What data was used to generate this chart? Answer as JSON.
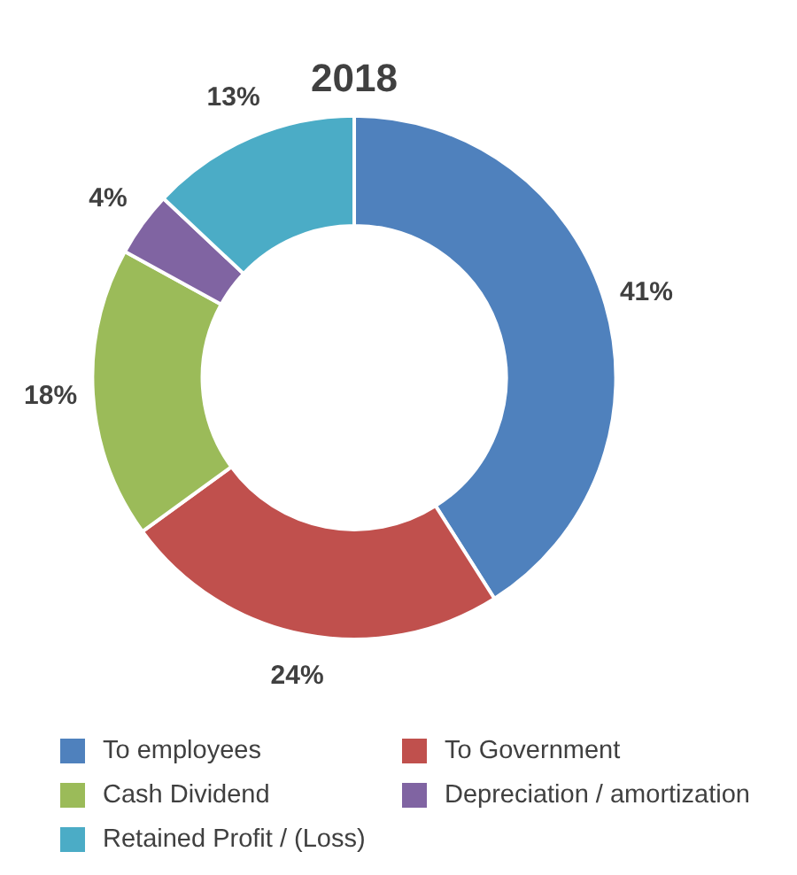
{
  "chart_data": {
    "type": "donut",
    "title": "2018",
    "categories": [
      "To employees",
      "To Government",
      "Cash Dividend",
      "Depreciation / amortization",
      "Retained Profit / (Loss)"
    ],
    "values": [
      41,
      24,
      18,
      4,
      13
    ],
    "colors": [
      "#4f81bd",
      "#c0504d",
      "#9bbb59",
      "#8064a2",
      "#4bacc6"
    ],
    "value_labels": [
      "41%",
      "24%",
      "18%",
      "4%",
      "13%"
    ],
    "legend": "bottom"
  }
}
